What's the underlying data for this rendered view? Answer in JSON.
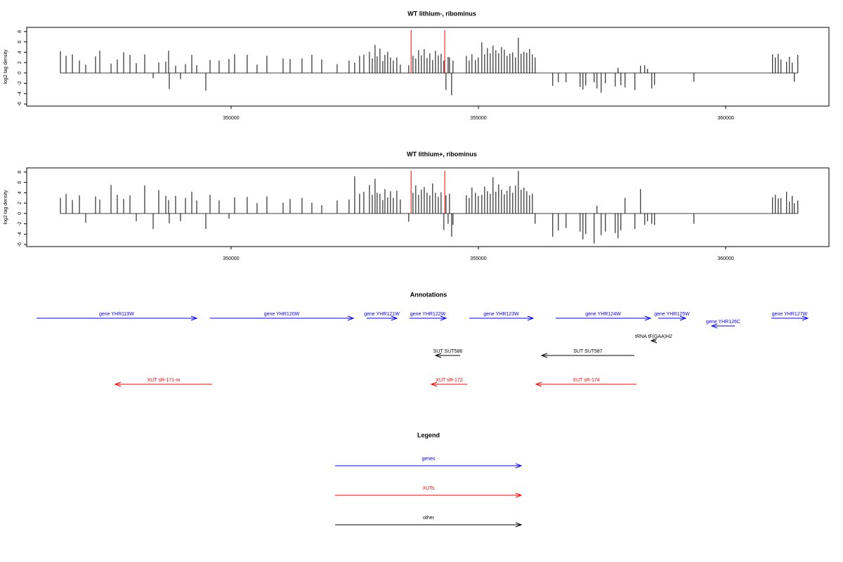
{
  "chart_data": [
    {
      "type": "track",
      "title": "WT lithium-, ribominus",
      "y_label": "log2 tag density",
      "xlim": [
        345867,
        362088
      ],
      "xticks": [
        350000,
        355000,
        360000
      ],
      "ylim": [
        -6.4,
        8.8
      ],
      "yticks": [
        -6,
        -4,
        -2,
        0,
        2,
        4,
        6,
        8
      ],
      "color": "#000000",
      "baseline_color": "#808080",
      "markers": [
        353640,
        354320
      ],
      "marker_color": "#ff0000",
      "x": [
        346549,
        346663,
        346791,
        346933,
        347060,
        347259,
        347344,
        347572,
        347699,
        347827,
        347955,
        348083,
        348253,
        348424,
        348537,
        348679,
        348736,
        348750,
        348878,
        348977,
        349077,
        349205,
        349304,
        349489,
        349574,
        349758,
        349957,
        350071,
        350326,
        350525,
        350724,
        351051,
        351193,
        351434,
        351633,
        351832,
        352144,
        352385,
        352499,
        352598,
        352684,
        352797,
        352854,
        352911,
        352953,
        353010,
        353067,
        353110,
        353166,
        353223,
        353280,
        353351,
        353422,
        353592,
        353678,
        353734,
        353791,
        353848,
        353905,
        353962,
        354018,
        354075,
        354132,
        354189,
        354246,
        354302,
        354345,
        354388,
        354416,
        354459,
        354487,
        354757,
        354814,
        354870,
        354941,
        354998,
        355069,
        355126,
        355183,
        355240,
        355296,
        355353,
        355410,
        355467,
        355524,
        355580,
        355637,
        355694,
        355751,
        355808,
        355864,
        355921,
        355978,
        356035,
        356092,
        356148,
        356503,
        356617,
        356773,
        357057,
        357114,
        357171,
        357341,
        357398,
        357483,
        357568,
        357767,
        357824,
        357881,
        357966,
        358165,
        358278,
        358364,
        358420,
        358506,
        358562,
        359358,
        360948,
        361005,
        361062,
        361118,
        361232,
        361289,
        361346,
        361388,
        361459
      ],
      "values": [
        4.2,
        3.3,
        3.6,
        2.4,
        1.6,
        3.2,
        4.3,
        1.8,
        2.6,
        4.0,
        3.5,
        1.9,
        3.6,
        -1.0,
        2.0,
        2.2,
        4.3,
        -3.1,
        1.4,
        -1.2,
        1.7,
        3.5,
        1.5,
        -3.4,
        2.5,
        2.4,
        2.7,
        3.6,
        3.5,
        1.6,
        3.3,
        2.8,
        2.7,
        2.8,
        3.5,
        2.6,
        1.7,
        2.4,
        2.0,
        3.3,
        3.5,
        4.1,
        2.8,
        5.4,
        3.2,
        4.7,
        2.3,
        3.5,
        4.1,
        3.0,
        2.4,
        3.0,
        1.6,
        1.5,
        3.3,
        2.8,
        4.4,
        3.4,
        4.6,
        2.9,
        3.8,
        2.5,
        4.3,
        3.4,
        3.7,
        2.4,
        -3.3,
        3.1,
        3.0,
        -4.3,
        2.4,
        3.3,
        2.4,
        3.6,
        2.5,
        3.0,
        5.9,
        3.6,
        4.8,
        3.8,
        5.3,
        4.4,
        3.8,
        5.0,
        4.5,
        3.3,
        3.7,
        4.0,
        3.0,
        6.8,
        3.7,
        4.1,
        3.9,
        4.6,
        3.6,
        3.0,
        -2.5,
        -1.8,
        -1.8,
        -2.7,
        -3.2,
        -2.4,
        -1.8,
        -3.0,
        -3.8,
        -2.0,
        -2.6,
        1.0,
        -2.4,
        -2.8,
        -3.3,
        1.4,
        1.5,
        0.8,
        -3.0,
        -2.3,
        -1.7,
        3.6,
        3.0,
        3.7,
        2.6,
        2.2,
        3.1,
        2.0,
        -1.7,
        3.5
      ]
    },
    {
      "type": "track",
      "title": "WT lithium+, ribominus",
      "y_label": "log2 tag density",
      "xlim": [
        345867,
        362088
      ],
      "xticks": [
        350000,
        355000,
        360000
      ],
      "ylim": [
        -6.4,
        8.8
      ],
      "yticks": [
        -6,
        -4,
        -2,
        0,
        2,
        4,
        6,
        8
      ],
      "color": "#000000",
      "baseline_color": "#808080",
      "markers": [
        353640,
        354320
      ],
      "marker_color": "#ff0000",
      "x": [
        346549,
        346663,
        346791,
        346933,
        347060,
        347259,
        347344,
        347572,
        347699,
        347827,
        347955,
        348083,
        348253,
        348424,
        348537,
        348679,
        348736,
        348750,
        348878,
        348977,
        349077,
        349205,
        349304,
        349489,
        349574,
        349758,
        349957,
        350071,
        350326,
        350525,
        350724,
        351051,
        351193,
        351434,
        351633,
        351832,
        352144,
        352385,
        352499,
        352598,
        352684,
        352797,
        352854,
        352911,
        352953,
        353010,
        353067,
        353110,
        353166,
        353223,
        353280,
        353351,
        353422,
        353592,
        353678,
        353734,
        353791,
        353848,
        353905,
        353962,
        354018,
        354075,
        354132,
        354189,
        354246,
        354302,
        354345,
        354388,
        354416,
        354459,
        354487,
        354757,
        354814,
        354870,
        354941,
        354998,
        355069,
        355126,
        355183,
        355240,
        355296,
        355353,
        355410,
        355467,
        355524,
        355580,
        355637,
        355694,
        355751,
        355808,
        355864,
        355921,
        355978,
        356035,
        356092,
        356148,
        356503,
        356617,
        356773,
        357057,
        357114,
        357171,
        357341,
        357398,
        357483,
        357568,
        357767,
        357824,
        357881,
        357966,
        358165,
        358278,
        358364,
        358420,
        358506,
        358562,
        359358,
        360948,
        361005,
        361062,
        361118,
        361232,
        361289,
        361346,
        361388,
        361459
      ],
      "values": [
        3.0,
        3.8,
        2.6,
        3.5,
        -1.8,
        3.3,
        2.7,
        5.5,
        3.6,
        2.8,
        3.5,
        -1.5,
        5.4,
        -3.0,
        4.5,
        3.4,
        2.6,
        -1.9,
        3.4,
        -1.5,
        3.0,
        4.2,
        2.5,
        -3.0,
        3.6,
        2.5,
        -1.0,
        3.1,
        3.2,
        2.0,
        3.3,
        2.1,
        2.8,
        3.0,
        2.1,
        1.6,
        2.5,
        2.7,
        7.2,
        3.8,
        4.2,
        5.5,
        3.6,
        6.7,
        4.0,
        3.8,
        2.6,
        4.7,
        3.1,
        4.3,
        3.0,
        4.4,
        2.7,
        -1.6,
        4.0,
        5.4,
        3.6,
        4.6,
        5.1,
        4.0,
        3.5,
        5.8,
        4.0,
        3.2,
        4.1,
        -3.2,
        3.5,
        -2.0,
        3.8,
        -4.5,
        -2.2,
        3.5,
        3.0,
        5.0,
        4.0,
        3.4,
        3.6,
        5.2,
        4.3,
        3.8,
        7.0,
        4.2,
        5.6,
        4.6,
        3.7,
        4.4,
        5.3,
        4.0,
        5.4,
        8.2,
        4.6,
        5.0,
        4.3,
        3.5,
        3.8,
        -2.0,
        -4.5,
        -3.3,
        -2.8,
        -3.5,
        -5.0,
        -4.0,
        -5.8,
        1.5,
        -4.2,
        -3.5,
        -3.8,
        -4.8,
        -3.3,
        3.0,
        -3.0,
        4.7,
        -2.2,
        -1.5,
        -2.0,
        -2.2,
        -2.0,
        3.1,
        3.6,
        2.9,
        3.0,
        4.2,
        2.3,
        3.4,
        2.0,
        2.5
      ]
    }
  ],
  "annotations": {
    "title": "Annotations",
    "features": [
      {
        "label": "gene YHR119W",
        "start": 346065,
        "end": 349304,
        "direction": "right",
        "color": "#0000ff"
      },
      {
        "label": "gene YHR120W",
        "start": 349574,
        "end": 352472,
        "direction": "right",
        "color": "#0000ff"
      },
      {
        "label": "gene YHR121W",
        "start": 352741,
        "end": 353352,
        "direction": "right",
        "color": "#0000ff"
      },
      {
        "label": "gene YHR122W",
        "start": 353608,
        "end": 354347,
        "direction": "right",
        "color": "#0000ff"
      },
      {
        "label": "gene YHR123W",
        "start": 354815,
        "end": 356108,
        "direction": "right",
        "color": "#0000ff"
      },
      {
        "label": "gene YHR124W",
        "start": 356562,
        "end": 358480,
        "direction": "right",
        "color": "#0000ff"
      },
      {
        "label": "gene YHR125W",
        "start": 358636,
        "end": 359190,
        "direction": "right",
        "color": "#0000ff"
      },
      {
        "label": "gene YHR126C",
        "start": 359716,
        "end": 360185,
        "direction": "left",
        "color": "#0000ff"
      },
      {
        "label": "gene YHR127W",
        "start": 360923,
        "end": 361662,
        "direction": "right",
        "color": "#0000ff"
      },
      {
        "label": "tRNA tF(GAA)H2",
        "start": 358494,
        "end": 358594,
        "direction": "left",
        "color": "#000000"
      },
      {
        "label": "SUT SUT586",
        "start": 354134,
        "end": 354631,
        "direction": "left",
        "color": "#000000"
      },
      {
        "label": "SUT SUT587",
        "start": 356278,
        "end": 358153,
        "direction": "left",
        "color": "#000000"
      },
      {
        "label": "XUT sR-171-m",
        "start": 347656,
        "end": 349616,
        "direction": "left",
        "color": "#ff0000"
      },
      {
        "label": "XUT sR-172",
        "start": 354048,
        "end": 354773,
        "direction": "left",
        "color": "#ff0000"
      },
      {
        "label": "XUT sR-174",
        "start": 356165,
        "end": 358196,
        "direction": "left",
        "color": "#ff0000"
      }
    ]
  },
  "legend": {
    "title": "Legend",
    "items": [
      {
        "label": "genes",
        "color": "#0000ff"
      },
      {
        "label": "XUTs",
        "color": "#ff0000"
      },
      {
        "label": "other",
        "color": "#000000"
      }
    ]
  }
}
